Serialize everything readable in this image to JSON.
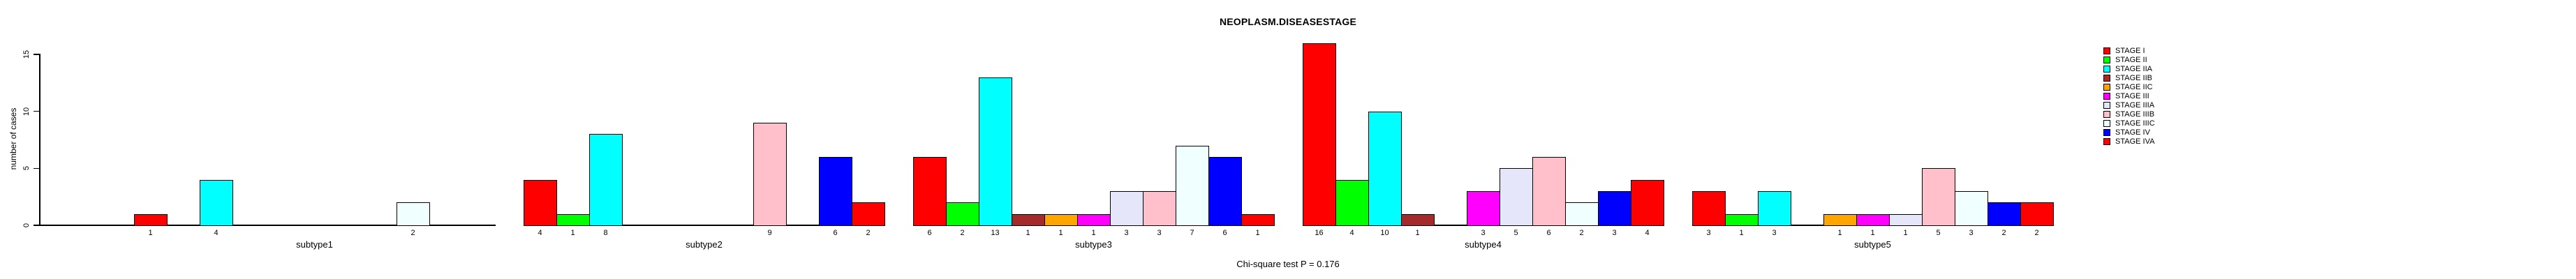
{
  "chart_data": {
    "type": "bar",
    "title": "NEOPLASM.DISEASESTAGE",
    "ylabel": "number of cases",
    "caption": "Chi-square test P = 0.176",
    "ylim": [
      0,
      15
    ],
    "yticks": [
      0,
      5,
      10,
      15
    ],
    "grid": false,
    "legend_position": "right",
    "categories": [
      "subtype1",
      "subtype2",
      "subtype3",
      "subtype4",
      "subtype5"
    ],
    "series": [
      {
        "name": "STAGE I",
        "color": "#FF0000",
        "values": [
          1,
          4,
          6,
          16,
          3
        ]
      },
      {
        "name": "STAGE II",
        "color": "#00FF00",
        "values": [
          0,
          1,
          2,
          4,
          1
        ]
      },
      {
        "name": "STAGE IIA",
        "color": "#00FFFF",
        "values": [
          4,
          8,
          13,
          10,
          3
        ]
      },
      {
        "name": "STAGE IIB",
        "color": "#A52A2A",
        "values": [
          0,
          0,
          1,
          1,
          0
        ]
      },
      {
        "name": "STAGE IIC",
        "color": "#FFA500",
        "values": [
          0,
          0,
          1,
          0,
          1
        ]
      },
      {
        "name": "STAGE III",
        "color": "#FF00FF",
        "values": [
          0,
          0,
          1,
          3,
          1
        ]
      },
      {
        "name": "STAGE IIIA",
        "color": "#E6E6FA",
        "values": [
          0,
          0,
          3,
          5,
          1
        ]
      },
      {
        "name": "STAGE IIIB",
        "color": "#FFC0CB",
        "values": [
          0,
          9,
          3,
          6,
          5
        ]
      },
      {
        "name": "STAGE IIIC",
        "color": "#F0FFFF",
        "values": [
          2,
          0,
          7,
          2,
          3
        ]
      },
      {
        "name": "STAGE IV",
        "color": "#0000FF",
        "values": [
          0,
          6,
          6,
          3,
          2
        ]
      },
      {
        "name": "STAGE IVA",
        "color": "#FF0000",
        "values": [
          0,
          2,
          1,
          4,
          2
        ]
      }
    ],
    "bar_count_labels_shown": true
  }
}
